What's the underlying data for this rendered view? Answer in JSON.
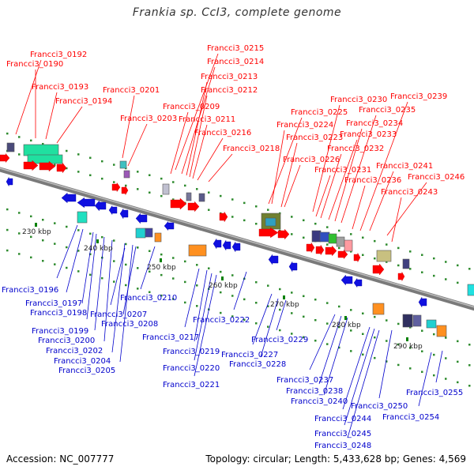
{
  "title": "Frankia sp. CcI3, complete genome",
  "accession_label": "Accession: NC_007777",
  "footer": "Topology: circular; Length: 5,433,628 bp; Genes: 4,569",
  "colors": {
    "plus_label": "#ff0000",
    "minus_label": "#0000cc",
    "backbone": "#8c8c8c",
    "tick": "#008000"
  },
  "kbp_ticks": [
    "230 kbp",
    "240 kbp",
    "250 kbp",
    "260 kbp",
    "270 kbp",
    "280 kbp",
    "290 kbp"
  ],
  "plus_labels": [
    "Francci3_0192",
    "Francci3_0190",
    "Francci3_0193",
    "Francci3_0194",
    "Francci3_0201",
    "Francci3_0203",
    "Francci3_0215",
    "Francci3_0214",
    "Francci3_0213",
    "Francci3_0212",
    "Francci3_0209",
    "Francci3_0211",
    "Francci3_0216",
    "Francci3_0218",
    "Francci3_0230",
    "Francci3_0225",
    "Francci3_0224",
    "Francci3_0223",
    "Francci3_0226",
    "Francci3_0231",
    "Francci3_0232",
    "Francci3_0233",
    "Francci3_0234",
    "Francci3_0235",
    "Francci3_0239",
    "Francci3_0241",
    "Francci3_0236",
    "Francci3_0246",
    "Francci3_0243"
  ],
  "minus_labels": [
    "Francci3_0196",
    "Francci3_0197",
    "Francci3_0198",
    "Francci3_0199",
    "Francci3_0200",
    "Francci3_0202",
    "Francci3_0204",
    "Francci3_0205",
    "Francci3_0207",
    "Francci3_0208",
    "Francci3_0210",
    "Francci3_0217",
    "Francci3_0219",
    "Francci3_0220",
    "Francci3_0221",
    "Francci3_0222",
    "Francci3_0227",
    "Francci3_0228",
    "Francci3_0229",
    "Francci3_0237",
    "Francci3_0238",
    "Francci3_0240",
    "Francci3_0244",
    "Francci3_0245",
    "Francci3_0248",
    "Francci3_0250",
    "Francci3_0254",
    "Francci3_0255"
  ]
}
